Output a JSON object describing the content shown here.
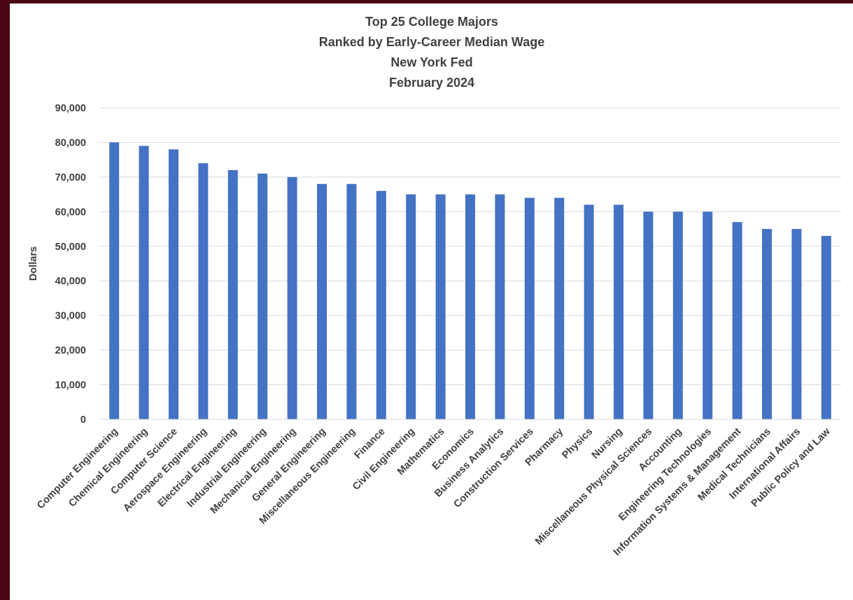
{
  "chart_data": {
    "type": "bar",
    "title": [
      "Top 25 College Majors",
      "Ranked by Early-Career Median Wage",
      "New York Fed",
      "February 2024"
    ],
    "xlabel": "",
    "ylabel": "Dollars",
    "ylim": [
      0,
      90000
    ],
    "yticks": [
      "0",
      "10,000",
      "20,000",
      "30,000",
      "40,000",
      "50,000",
      "60,000",
      "70,000",
      "80,000",
      "90,000"
    ],
    "grid": true,
    "legend": "none",
    "bar_color": "#4472c4",
    "categories": [
      "Computer Engineering",
      "Chemical Engineering",
      "Computer Science",
      "Aerospace Engineering",
      "Electrical Engineering",
      "Industrial Engineering",
      "Mechanical Engineering",
      "General Engineering",
      "Miscellaneous Engineering",
      "Finance",
      "Civil Engineering",
      "Mathematics",
      "Economics",
      "Business Analytics",
      "Construction Services",
      "Pharmacy",
      "Physics",
      "Nursing",
      "Miscellaneous Physical Sciences",
      "Accounting",
      "Engineering Technologies",
      "Information Systems & Management",
      "Medical Technicians",
      "International Affairs",
      "Public Policy and Law"
    ],
    "values": [
      80000,
      79000,
      78000,
      74000,
      72000,
      71000,
      70000,
      68000,
      68000,
      66000,
      65000,
      65000,
      65000,
      65000,
      64000,
      64000,
      62000,
      62000,
      60000,
      60000,
      60000,
      57000,
      55000,
      55000,
      53000
    ]
  }
}
